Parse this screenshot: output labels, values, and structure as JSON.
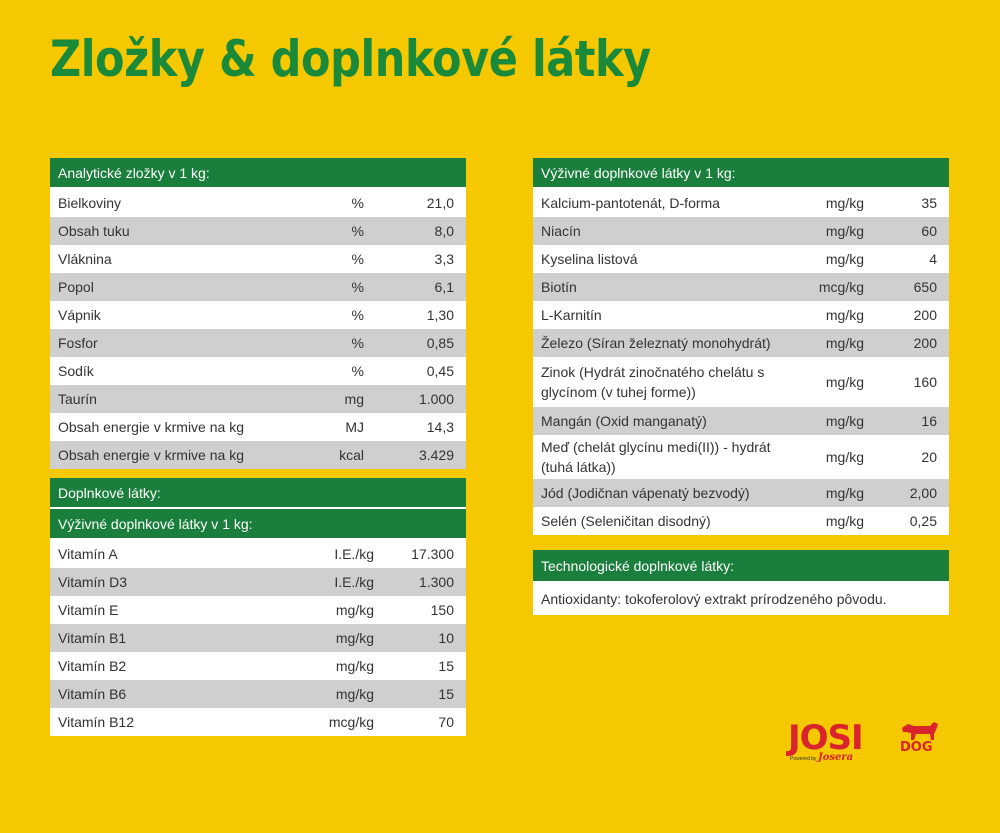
{
  "title": "Zložky & doplnkové látky",
  "analytical": {
    "header": "Analytické zložky v 1 kg:",
    "rows": [
      {
        "name": "Bielkoviny",
        "unit": "%",
        "value": "21,0"
      },
      {
        "name": "Obsah tuku",
        "unit": "%",
        "value": "8,0"
      },
      {
        "name": "Vláknina",
        "unit": "%",
        "value": "3,3"
      },
      {
        "name": "Popol",
        "unit": "%",
        "value": "6,1"
      },
      {
        "name": "Vápnik",
        "unit": "%",
        "value": "1,30"
      },
      {
        "name": "Fosfor",
        "unit": "%",
        "value": "0,85"
      },
      {
        "name": "Sodík",
        "unit": "%",
        "value": "0,45"
      },
      {
        "name": "Taurín",
        "unit": "mg",
        "value": "1.000"
      },
      {
        "name": "Obsah energie v krmive na kg",
        "unit": "MJ",
        "value": "14,3"
      },
      {
        "name": "Obsah energie v krmive na kg",
        "unit": "kcal",
        "value": "3.429"
      }
    ]
  },
  "additives": {
    "header": "Doplnkové látky:",
    "subheader": "Výživné doplnkové látky v 1 kg:",
    "rows": [
      {
        "name": "Vitamín A",
        "unit": "I.E./kg",
        "value": "17.300"
      },
      {
        "name": "Vitamín D3",
        "unit": "I.E./kg",
        "value": "1.300"
      },
      {
        "name": "Vitamín E",
        "unit": "mg/kg",
        "value": "150"
      },
      {
        "name": "Vitamín B1",
        "unit": "mg/kg",
        "value": "10"
      },
      {
        "name": "Vitamín B2",
        "unit": "mg/kg",
        "value": "15"
      },
      {
        "name": "Vitamín B6",
        "unit": "mg/kg",
        "value": "15"
      },
      {
        "name": "Vitamín B12",
        "unit": "mcg/kg",
        "value": "70"
      }
    ]
  },
  "nutritional": {
    "header": "Výživné doplnkové látky v 1 kg:",
    "rows": [
      {
        "name": "Kalcium-pantotenát, D-forma",
        "unit": "mg/kg",
        "value": "35"
      },
      {
        "name": "Niacín",
        "unit": "mg/kg",
        "value": "60"
      },
      {
        "name": "Kyselina listová",
        "unit": "mg/kg",
        "value": "4"
      },
      {
        "name": "Biotín",
        "unit": "mcg/kg",
        "value": "650"
      },
      {
        "name": "L-Karnitín",
        "unit": "mg/kg",
        "value": "200"
      },
      {
        "name": "Železo (Síran železnatý monohydrát)",
        "unit": "mg/kg",
        "value": "200"
      },
      {
        "name": "Zinok (Hydrát zinočnatého chelátu s glycínom (v tuhej forme))",
        "unit": "mg/kg",
        "value": "160"
      },
      {
        "name": "Mangán (Oxid manganatý)",
        "unit": "mg/kg",
        "value": "16"
      },
      {
        "name": "Meď (chelát glycínu medi(II)) - hydrát (tuhá látka))",
        "unit": "mg/kg",
        "value": "20"
      },
      {
        "name": "Jód (Jodičnan vápenatý bezvodý)",
        "unit": "mg/kg",
        "value": "2,00"
      },
      {
        "name": "Selén (Seleničitan disodný)",
        "unit": "mg/kg",
        "value": "0,25"
      }
    ]
  },
  "technological": {
    "header": "Technologické doplnkové látky:",
    "text": "Antioxidanty: tokoferolový extrakt prírodzeného pôvodu."
  },
  "logo": {
    "brand": "JOSI",
    "dog": "DOG",
    "powered": "Powered by",
    "josera": "Josera"
  }
}
